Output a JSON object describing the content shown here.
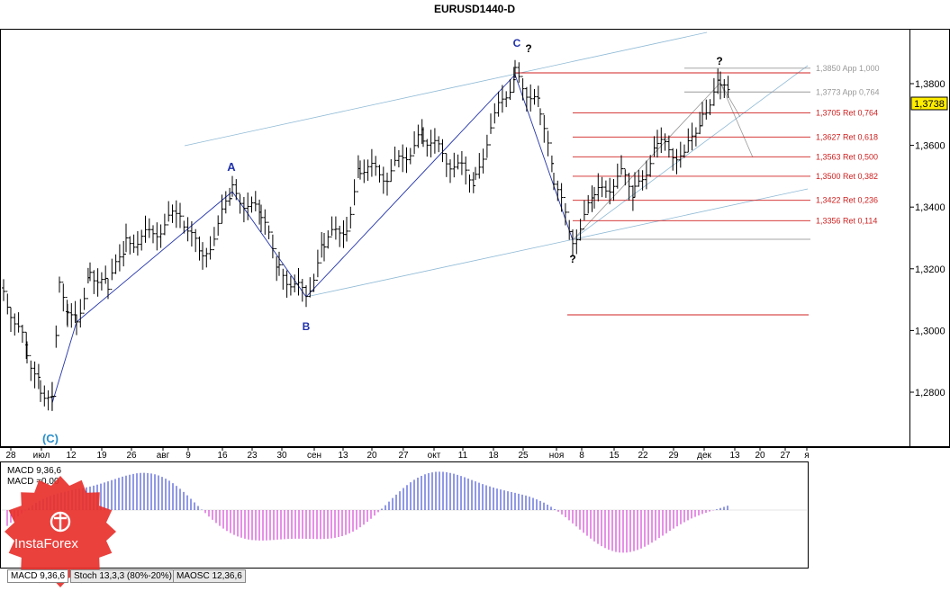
{
  "title": "EURUSD1440-D",
  "last_price": "1,3738",
  "chart_data": {
    "type": "candlestick-ohlc",
    "title": "EURUSD1440-D",
    "y_ticks": [
      "1,3800",
      "1,3600",
      "1,3400",
      "1,3200",
      "1,3000",
      "1,2800"
    ],
    "y_tick_values": [
      1.38,
      1.36,
      1.34,
      1.32,
      1.3,
      1.28
    ],
    "ylim": [
      1.27,
      1.397
    ],
    "x_tick_labels": [
      "28",
      "июл",
      "12",
      "19",
      "26",
      "авг",
      "9",
      "16",
      "23",
      "30",
      "сен",
      "13",
      "20",
      "27",
      "окт",
      "11",
      "18",
      "25",
      "ноя",
      "8",
      "15",
      "22",
      "29",
      "дек",
      "13",
      "20",
      "27",
      "я"
    ],
    "fib_levels": [
      {
        "label": "1,3850 App 1,000",
        "value": 1.385
      },
      {
        "label": "1,3773 App 0,764",
        "value": 1.3773
      },
      {
        "label": "1,3705 Ret 0,764",
        "value": 1.3705
      },
      {
        "label": "1,3627 Ret 0,618",
        "value": 1.3627
      },
      {
        "label": "1,3563 Ret 0,500",
        "value": 1.3563
      },
      {
        "label": "1,3500 Ret 0,382",
        "value": 1.35
      },
      {
        "label": "1,3422 Ret 0,236",
        "value": 1.3422
      },
      {
        "label": "1,3356 Ret 0,114",
        "value": 1.3356
      }
    ],
    "wave_labels": [
      {
        "text": "(C)",
        "color": "#2a8fcc"
      },
      {
        "text": "A",
        "color": "#2233aa"
      },
      {
        "text": "B",
        "color": "#2233aa"
      },
      {
        "text": "C",
        "color": "#2233aa"
      },
      {
        "text": "?",
        "color": "#000"
      }
    ],
    "indicator": {
      "name": "MACD 9,36,6",
      "macd_label": "MACD 9,36,6",
      "signal_label": "MACD =0,00"
    }
  },
  "tabs": [
    {
      "label": "MACD 9,36,6",
      "active": true
    },
    {
      "label": "Stoch 13,3,3 (80%-20%)",
      "active": false
    },
    {
      "label": "MAOSC 12,36,6",
      "active": false
    }
  ],
  "logo": {
    "text": "InstaForex",
    "color": "#e8312d"
  }
}
